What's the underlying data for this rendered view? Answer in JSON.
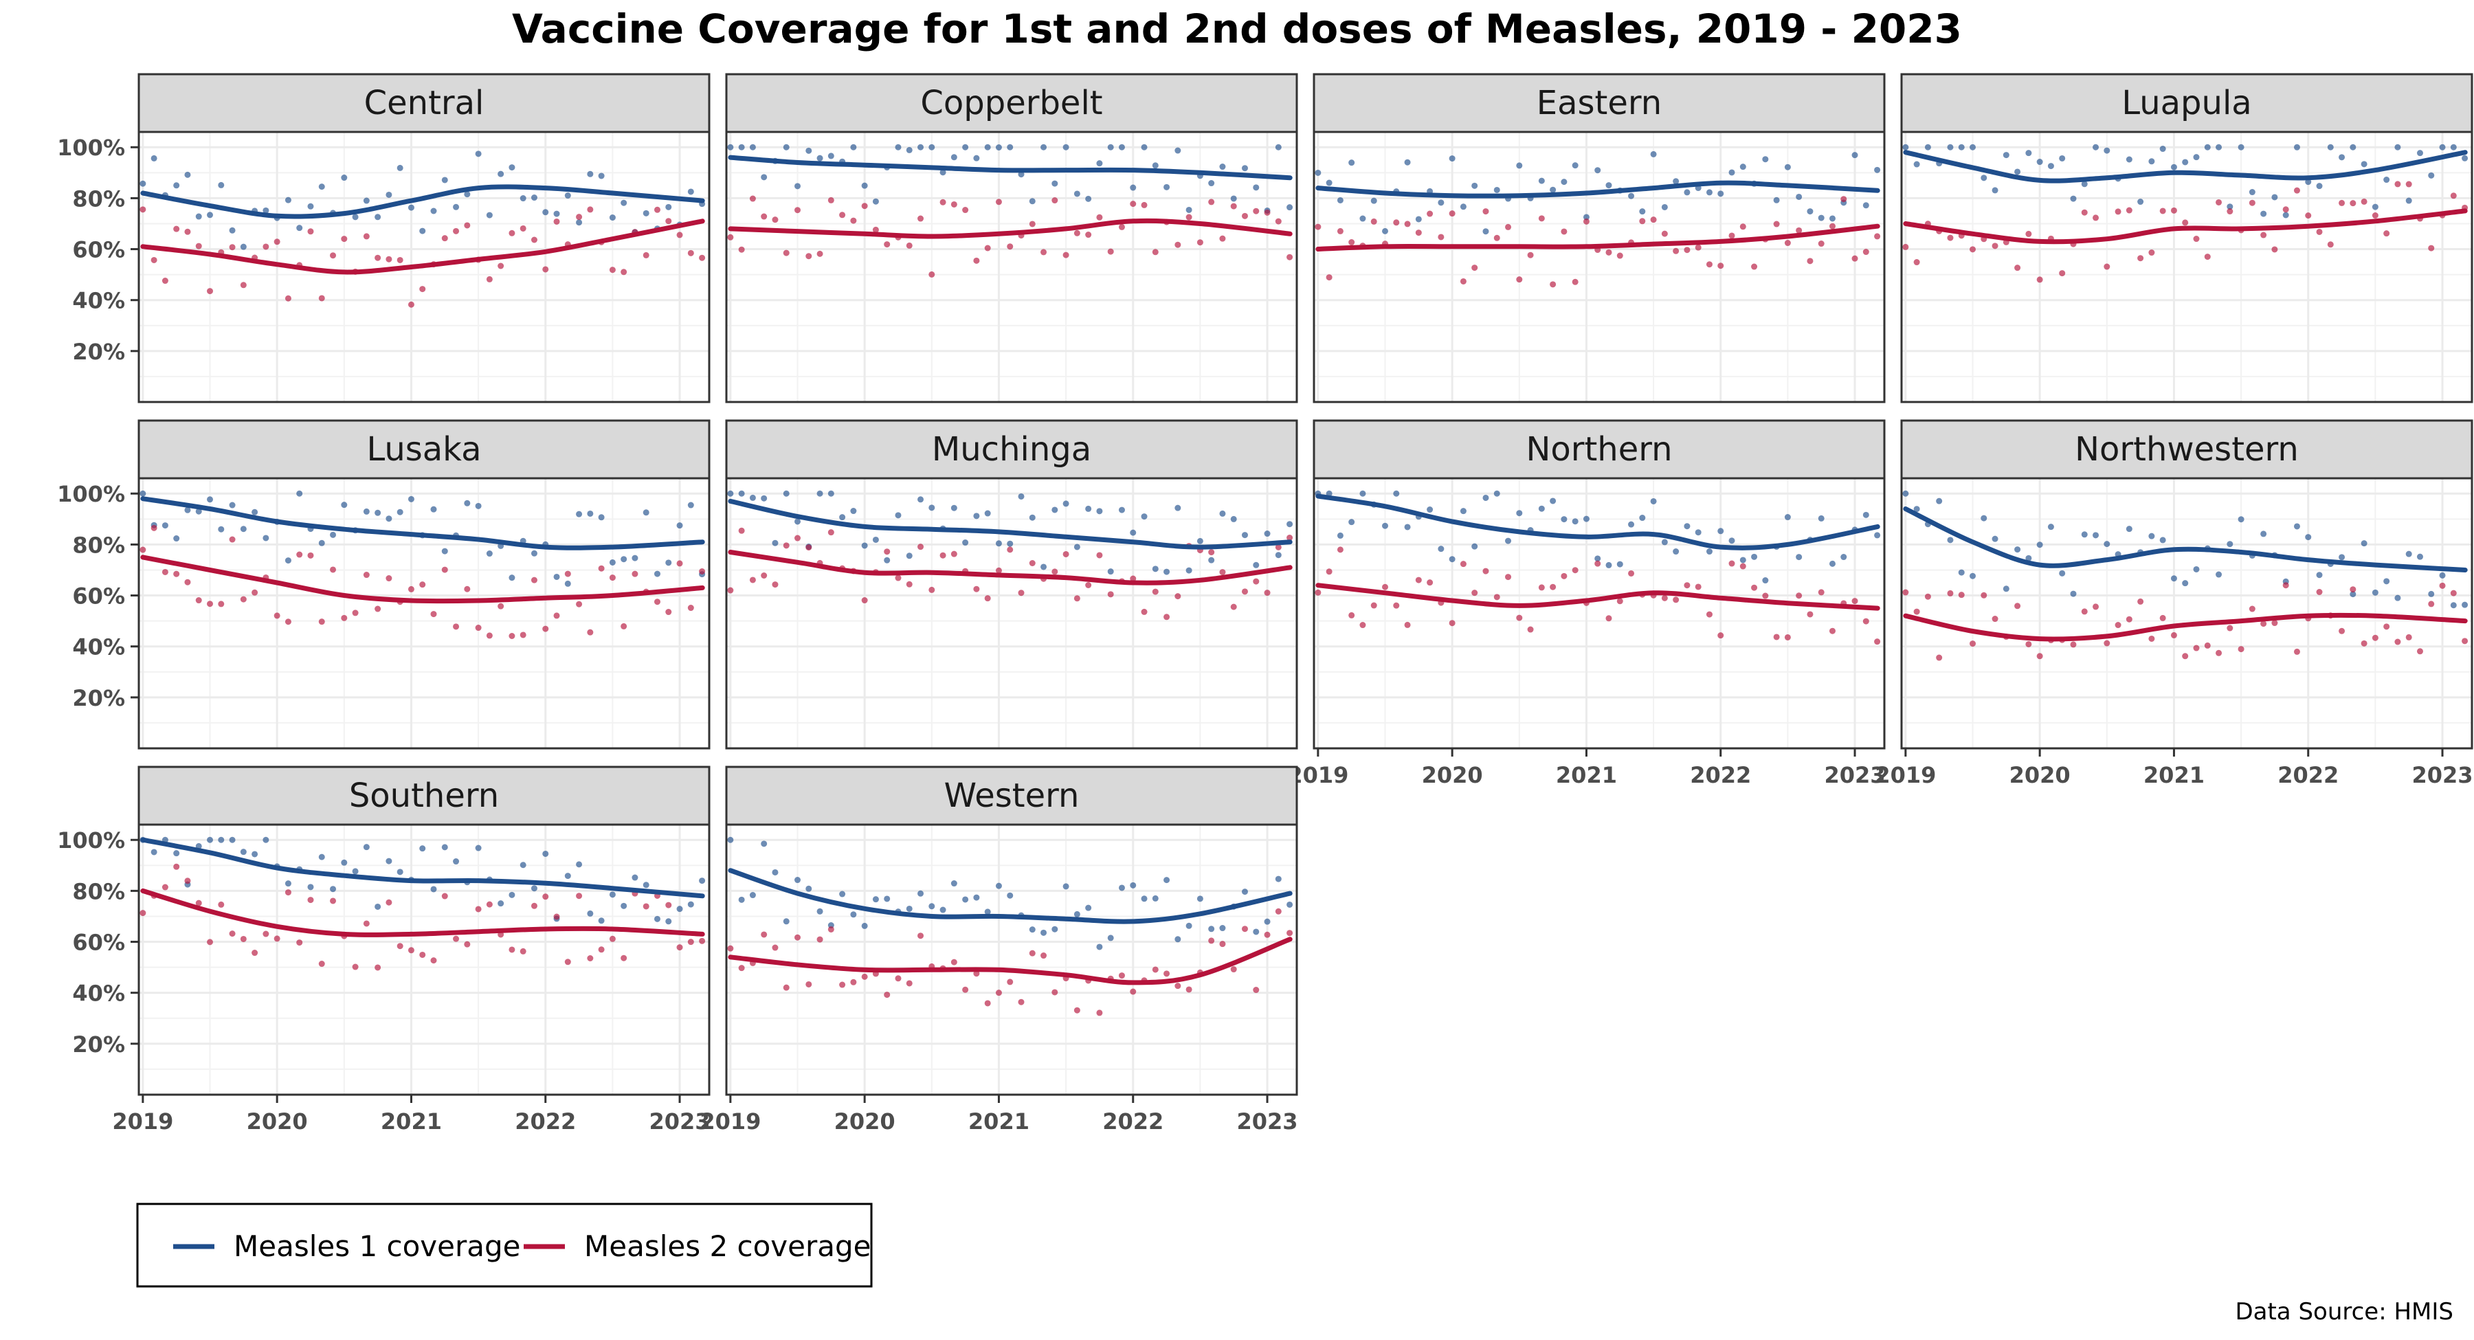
{
  "chart_data": {
    "type": "line",
    "title": "Vaccine Coverage for 1st and 2nd doses of Measles, 2019 - 2023",
    "caption": "Data Source: HMIS",
    "xlabel": "",
    "ylabel": "",
    "x_ticks": [
      "2019",
      "2020",
      "2021",
      "2022",
      "2023"
    ],
    "xlim": [
      2018.97,
      2023.22
    ],
    "y_ticks": [
      "20%",
      "40%",
      "60%",
      "80%",
      "100%"
    ],
    "ylim": [
      0,
      106
    ],
    "grid": true,
    "legend": {
      "position": "bottom-left",
      "entries": [
        "Measles 1 coverage",
        "Measles 2 coverage"
      ]
    },
    "colors": {
      "m1": "#1f4e8c",
      "m2": "#b5133b",
      "strip": "#d9d9d9",
      "grid": "#ebebeb"
    },
    "series_names": [
      "Measles 1 coverage",
      "Measles 2 coverage"
    ],
    "panels": [
      {
        "name": "Central",
        "m1_trend": [
          [
            2019,
            82
          ],
          [
            2019.5,
            77
          ],
          [
            2020,
            73
          ],
          [
            2020.5,
            74
          ],
          [
            2021,
            79
          ],
          [
            2021.5,
            84
          ],
          [
            2022,
            84
          ],
          [
            2022.5,
            82
          ],
          [
            2023.17,
            79
          ]
        ],
        "m2_trend": [
          [
            2019,
            61
          ],
          [
            2019.5,
            58
          ],
          [
            2020,
            54
          ],
          [
            2020.5,
            51
          ],
          [
            2021,
            53
          ],
          [
            2021.5,
            56
          ],
          [
            2022,
            59
          ],
          [
            2022.5,
            64
          ],
          [
            2023.17,
            71
          ]
        ]
      },
      {
        "name": "Copperbelt",
        "m1_trend": [
          [
            2019,
            96
          ],
          [
            2019.5,
            94
          ],
          [
            2020,
            93
          ],
          [
            2020.5,
            92
          ],
          [
            2021,
            91
          ],
          [
            2021.5,
            91
          ],
          [
            2022,
            91
          ],
          [
            2022.5,
            90
          ],
          [
            2023.17,
            88
          ]
        ],
        "m2_trend": [
          [
            2019,
            68
          ],
          [
            2019.5,
            67
          ],
          [
            2020,
            66
          ],
          [
            2020.5,
            65
          ],
          [
            2021,
            66
          ],
          [
            2021.5,
            68
          ],
          [
            2022,
            71
          ],
          [
            2022.5,
            70
          ],
          [
            2023.17,
            66
          ]
        ]
      },
      {
        "name": "Eastern",
        "m1_trend": [
          [
            2019,
            84
          ],
          [
            2019.5,
            82
          ],
          [
            2020,
            81
          ],
          [
            2020.5,
            81
          ],
          [
            2021,
            82
          ],
          [
            2021.5,
            84
          ],
          [
            2022,
            86
          ],
          [
            2022.5,
            85
          ],
          [
            2023.17,
            83
          ]
        ],
        "m2_trend": [
          [
            2019,
            60
          ],
          [
            2019.5,
            61
          ],
          [
            2020,
            61
          ],
          [
            2020.5,
            61
          ],
          [
            2021,
            61
          ],
          [
            2021.5,
            62
          ],
          [
            2022,
            63
          ],
          [
            2022.5,
            65
          ],
          [
            2023.17,
            69
          ]
        ]
      },
      {
        "name": "Luapula",
        "m1_trend": [
          [
            2019,
            98
          ],
          [
            2019.5,
            92
          ],
          [
            2020,
            87
          ],
          [
            2020.5,
            88
          ],
          [
            2021,
            90
          ],
          [
            2021.5,
            89
          ],
          [
            2022,
            88
          ],
          [
            2022.5,
            91
          ],
          [
            2023.17,
            98
          ]
        ],
        "m2_trend": [
          [
            2019,
            70
          ],
          [
            2019.5,
            66
          ],
          [
            2020,
            63
          ],
          [
            2020.5,
            64
          ],
          [
            2021,
            68
          ],
          [
            2021.5,
            68
          ],
          [
            2022,
            69
          ],
          [
            2022.5,
            71
          ],
          [
            2023.17,
            75
          ]
        ]
      },
      {
        "name": "Lusaka",
        "m1_trend": [
          [
            2019,
            98
          ],
          [
            2019.5,
            94
          ],
          [
            2020,
            89
          ],
          [
            2020.5,
            86
          ],
          [
            2021,
            84
          ],
          [
            2021.5,
            82
          ],
          [
            2022,
            79
          ],
          [
            2022.5,
            79
          ],
          [
            2023.17,
            81
          ]
        ],
        "m2_trend": [
          [
            2019,
            75
          ],
          [
            2019.5,
            70
          ],
          [
            2020,
            65
          ],
          [
            2020.5,
            60
          ],
          [
            2021,
            58
          ],
          [
            2021.5,
            58
          ],
          [
            2022,
            59
          ],
          [
            2022.5,
            60
          ],
          [
            2023.17,
            63
          ]
        ]
      },
      {
        "name": "Muchinga",
        "m1_trend": [
          [
            2019,
            97
          ],
          [
            2019.5,
            91
          ],
          [
            2020,
            87
          ],
          [
            2020.5,
            86
          ],
          [
            2021,
            85
          ],
          [
            2021.5,
            83
          ],
          [
            2022,
            81
          ],
          [
            2022.5,
            79
          ],
          [
            2023.17,
            81
          ]
        ],
        "m2_trend": [
          [
            2019,
            77
          ],
          [
            2019.5,
            73
          ],
          [
            2020,
            69
          ],
          [
            2020.5,
            69
          ],
          [
            2021,
            68
          ],
          [
            2021.5,
            67
          ],
          [
            2022,
            65
          ],
          [
            2022.5,
            66
          ],
          [
            2023.17,
            71
          ]
        ]
      },
      {
        "name": "Northern",
        "m1_trend": [
          [
            2019,
            99
          ],
          [
            2019.5,
            95
          ],
          [
            2020,
            89
          ],
          [
            2020.5,
            85
          ],
          [
            2021,
            83
          ],
          [
            2021.5,
            84
          ],
          [
            2022,
            79
          ],
          [
            2022.5,
            80
          ],
          [
            2023.17,
            87
          ]
        ],
        "m2_trend": [
          [
            2019,
            64
          ],
          [
            2019.5,
            61
          ],
          [
            2020,
            58
          ],
          [
            2020.5,
            56
          ],
          [
            2021,
            58
          ],
          [
            2021.5,
            61
          ],
          [
            2022,
            59
          ],
          [
            2022.5,
            57
          ],
          [
            2023.17,
            55
          ]
        ]
      },
      {
        "name": "Northwestern",
        "m1_trend": [
          [
            2019,
            94
          ],
          [
            2019.5,
            81
          ],
          [
            2020,
            72
          ],
          [
            2020.5,
            74
          ],
          [
            2021,
            78
          ],
          [
            2021.5,
            77
          ],
          [
            2022,
            74
          ],
          [
            2022.5,
            72
          ],
          [
            2023.17,
            70
          ]
        ],
        "m2_trend": [
          [
            2019,
            52
          ],
          [
            2019.5,
            46
          ],
          [
            2020,
            43
          ],
          [
            2020.5,
            44
          ],
          [
            2021,
            48
          ],
          [
            2021.5,
            50
          ],
          [
            2022,
            52
          ],
          [
            2022.5,
            52
          ],
          [
            2023.17,
            50
          ]
        ]
      },
      {
        "name": "Southern",
        "m1_trend": [
          [
            2019,
            100
          ],
          [
            2019.5,
            95
          ],
          [
            2020,
            89
          ],
          [
            2020.5,
            86
          ],
          [
            2021,
            84
          ],
          [
            2021.5,
            84
          ],
          [
            2022,
            83
          ],
          [
            2022.5,
            81
          ],
          [
            2023.17,
            78
          ]
        ],
        "m2_trend": [
          [
            2019,
            80
          ],
          [
            2019.5,
            72
          ],
          [
            2020,
            66
          ],
          [
            2020.5,
            63
          ],
          [
            2021,
            63
          ],
          [
            2021.5,
            64
          ],
          [
            2022,
            65
          ],
          [
            2022.5,
            65
          ],
          [
            2023.17,
            63
          ]
        ]
      },
      {
        "name": "Western",
        "m1_trend": [
          [
            2019,
            88
          ],
          [
            2019.5,
            79
          ],
          [
            2020,
            73
          ],
          [
            2020.5,
            70
          ],
          [
            2021,
            70
          ],
          [
            2021.5,
            69
          ],
          [
            2022,
            68
          ],
          [
            2022.5,
            71
          ],
          [
            2023.17,
            79
          ]
        ],
        "m2_trend": [
          [
            2019,
            54
          ],
          [
            2019.5,
            51
          ],
          [
            2020,
            49
          ],
          [
            2020.5,
            49
          ],
          [
            2021,
            49
          ],
          [
            2021.5,
            47
          ],
          [
            2022,
            44
          ],
          [
            2022.5,
            47
          ],
          [
            2023.17,
            61
          ]
        ]
      }
    ]
  }
}
